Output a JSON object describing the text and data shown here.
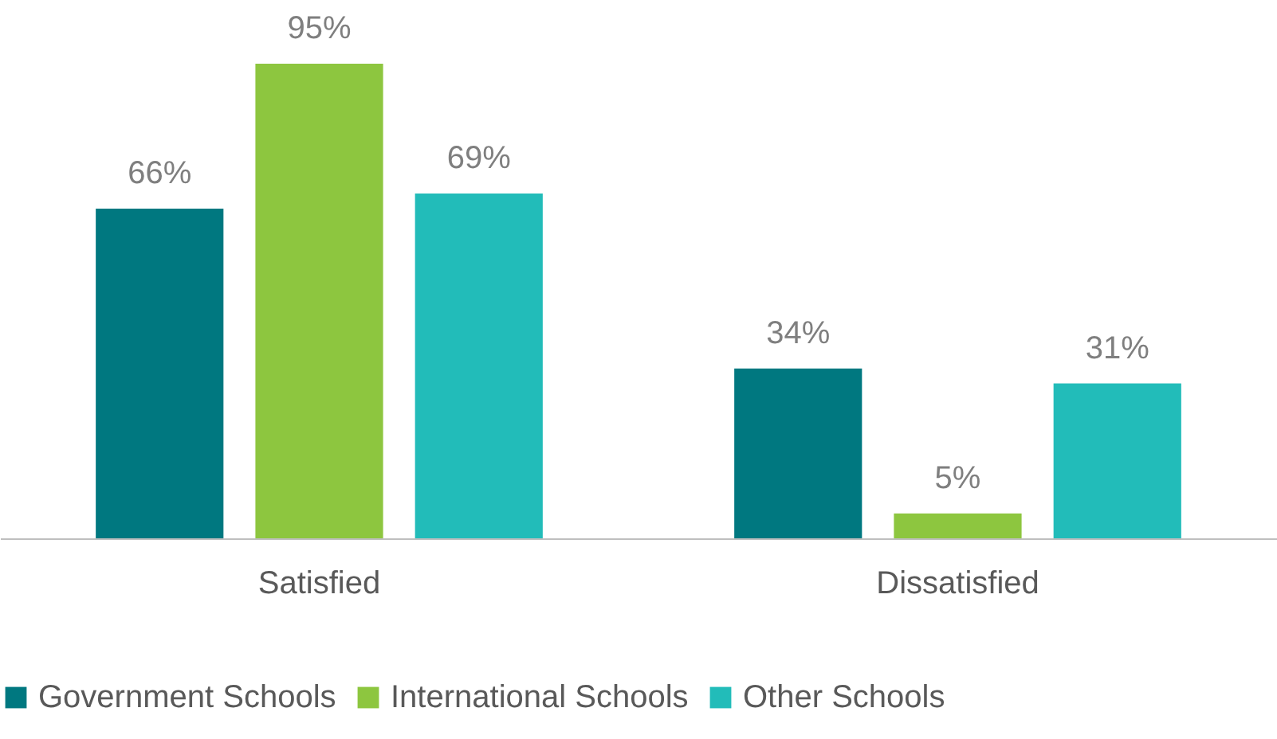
{
  "chart_data": {
    "type": "bar",
    "categories": [
      "Satisfied",
      "Dissatisfied"
    ],
    "series": [
      {
        "name": "Government Schools",
        "color": "#007880",
        "values": [
          66,
          34
        ],
        "value_labels": [
          "66%",
          "34%"
        ]
      },
      {
        "name": "International Schools",
        "color": "#8dc63f",
        "values": [
          95,
          5
        ],
        "value_labels": [
          "95%",
          "5%"
        ]
      },
      {
        "name": "Other Schools",
        "color": "#22bcb9",
        "values": [
          69,
          31
        ],
        "value_labels": [
          "69%",
          "31%"
        ]
      }
    ],
    "legend": "bottom",
    "grid": false
  }
}
